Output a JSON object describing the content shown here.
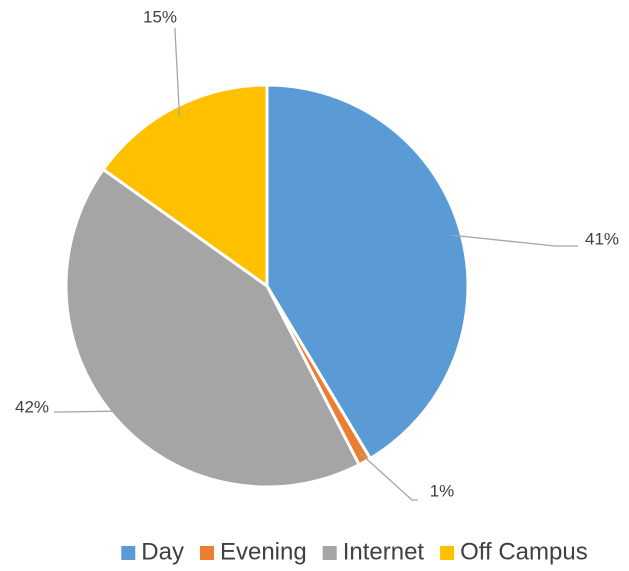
{
  "chart_data": {
    "type": "pie",
    "categories": [
      "Day",
      "Evening",
      "Internet",
      "Off Campus"
    ],
    "values": [
      41,
      1,
      42,
      15
    ],
    "value_labels": [
      "41%",
      "1%",
      "42%",
      "15%"
    ],
    "colors": [
      "#5b9bd5",
      "#ed7d31",
      "#a5a5a5",
      "#ffc000"
    ],
    "legend": "bottom"
  }
}
